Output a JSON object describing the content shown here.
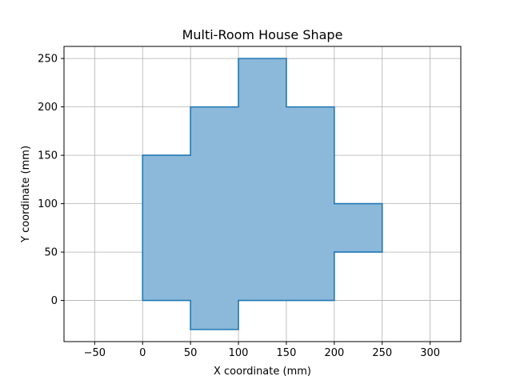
{
  "chart_data": {
    "type": "area",
    "title": "Multi-Room House Shape",
    "xlabel": "X coordinate (mm)",
    "ylabel": "Y coordinate (mm)",
    "xlim": [
      -82,
      332
    ],
    "ylim": [
      -42.5,
      262.5
    ],
    "xticks": [
      -50,
      0,
      50,
      100,
      150,
      200,
      250,
      300
    ],
    "yticks": [
      0,
      50,
      100,
      150,
      200,
      250
    ],
    "grid": true,
    "series": [
      {
        "polygon": [
          [
            0,
            0
          ],
          [
            50,
            0
          ],
          [
            50,
            -30
          ],
          [
            100,
            -30
          ],
          [
            100,
            0
          ],
          [
            200,
            0
          ],
          [
            200,
            50
          ],
          [
            250,
            50
          ],
          [
            250,
            100
          ],
          [
            200,
            100
          ],
          [
            200,
            200
          ],
          [
            150,
            200
          ],
          [
            150,
            250
          ],
          [
            100,
            250
          ],
          [
            100,
            200
          ],
          [
            50,
            200
          ],
          [
            50,
            150
          ],
          [
            0,
            150
          ],
          [
            0,
            0
          ]
        ],
        "fill_color": "#8cb9d9",
        "edge_color": "#1f77b4"
      }
    ]
  }
}
